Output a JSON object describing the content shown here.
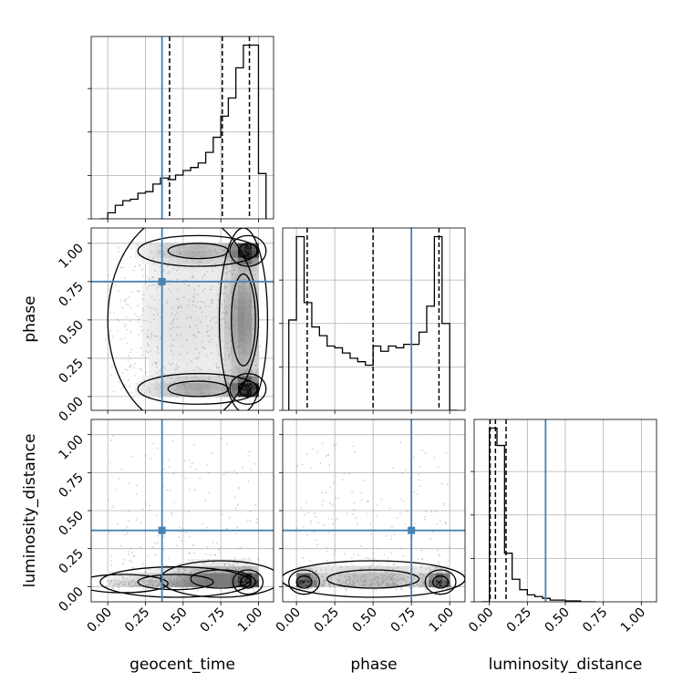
{
  "chart_data": {
    "type": "corner",
    "parameters": [
      "geocent_time",
      "phase",
      "luminosity_distance"
    ],
    "axis_labels": {
      "geocent_time": "geocent_time",
      "phase": "phase",
      "luminosity_distance": "luminosity_distance"
    },
    "tick_labels": [
      "0.00",
      "0.25",
      "0.50",
      "0.75",
      "1.00"
    ],
    "ranges": {
      "geocent_time": [
        -0.11,
        1.1
      ],
      "phase": [
        -0.09,
        1.1
      ],
      "luminosity_distance": [
        -0.1,
        1.1
      ]
    },
    "true_values": {
      "geocent_time": 0.36,
      "phase": 0.75,
      "luminosity_distance": 0.37
    },
    "quantiles": {
      "geocent_time": [
        0.41,
        0.76,
        0.94
      ],
      "phase": [
        0.07,
        0.5,
        0.93
      ],
      "luminosity_distance": [
        0.005,
        0.04,
        0.11
      ]
    },
    "histograms": {
      "geocent_time": {
        "edges": [
          -0.05,
          0.0,
          0.05,
          0.1,
          0.15,
          0.2,
          0.25,
          0.3,
          0.35,
          0.4,
          0.45,
          0.5,
          0.55,
          0.6,
          0.65,
          0.7,
          0.75,
          0.8,
          0.85,
          0.9,
          0.95,
          1.0,
          1.05
        ],
        "counts": [
          0,
          4,
          9,
          12,
          13,
          17,
          18,
          23,
          27,
          26,
          29,
          32,
          34,
          37,
          44,
          54,
          68,
          80,
          100,
          115,
          115,
          30
        ]
      },
      "phase": {
        "edges": [
          -0.05,
          0.0,
          0.05,
          0.1,
          0.15,
          0.2,
          0.25,
          0.3,
          0.35,
          0.4,
          0.45,
          0.5,
          0.55,
          0.6,
          0.65,
          0.7,
          0.75,
          0.8,
          0.85,
          0.9,
          0.95,
          1.0,
          1.05
        ],
        "counts": [
          52,
          100,
          62,
          48,
          43,
          37,
          36,
          33,
          30,
          28,
          26,
          37,
          34,
          37,
          36,
          38,
          38,
          45,
          60,
          100,
          50,
          0
        ]
      },
      "luminosity_distance": {
        "edges": [
          -0.05,
          0.0,
          0.05,
          0.1,
          0.15,
          0.2,
          0.25,
          0.3,
          0.35,
          0.4,
          0.45,
          0.5,
          0.55,
          0.6,
          0.65,
          0.7
        ],
        "counts": [
          0,
          100,
          90,
          28,
          13,
          7,
          4,
          3,
          2,
          1,
          1,
          0.5,
          0.5,
          0,
          0
        ]
      }
    },
    "density_blobs": {
      "phase_vs_geocent_time": [
        {
          "x": 0.93,
          "y": 0.05,
          "sx": 0.06,
          "sy": 0.05,
          "w": 1.0
        },
        {
          "x": 0.93,
          "y": 0.95,
          "sx": 0.06,
          "sy": 0.05,
          "w": 0.9
        },
        {
          "x": 0.9,
          "y": 0.5,
          "sx": 0.08,
          "sy": 0.3,
          "w": 0.45
        },
        {
          "x": 0.6,
          "y": 0.05,
          "sx": 0.2,
          "sy": 0.05,
          "w": 0.35
        },
        {
          "x": 0.6,
          "y": 0.95,
          "sx": 0.2,
          "sy": 0.05,
          "w": 0.3
        },
        {
          "x": 0.5,
          "y": 0.5,
          "sx": 0.25,
          "sy": 0.35,
          "w": 0.12
        }
      ],
      "luminosity_distance_vs_geocent_time": [
        {
          "x": 0.93,
          "y": 0.03,
          "sx": 0.05,
          "sy": 0.04,
          "w": 1.0
        },
        {
          "x": 0.75,
          "y": 0.05,
          "sx": 0.2,
          "sy": 0.06,
          "w": 0.5
        },
        {
          "x": 0.45,
          "y": 0.03,
          "sx": 0.25,
          "sy": 0.05,
          "w": 0.25
        },
        {
          "x": 0.1,
          "y": 0.02,
          "sx": 0.15,
          "sy": 0.03,
          "w": 0.08
        }
      ],
      "luminosity_distance_vs_phase": [
        {
          "x": 0.05,
          "y": 0.03,
          "sx": 0.05,
          "sy": 0.04,
          "w": 1.0
        },
        {
          "x": 0.94,
          "y": 0.03,
          "sx": 0.05,
          "sy": 0.04,
          "w": 1.0
        },
        {
          "x": 0.5,
          "y": 0.05,
          "sx": 0.3,
          "sy": 0.06,
          "w": 0.3
        }
      ]
    },
    "grid": true,
    "colors": {
      "truth": "#4682b4",
      "histogram": "#000000",
      "grid": "#b0b0b0",
      "points": "#7f7f7f"
    }
  }
}
